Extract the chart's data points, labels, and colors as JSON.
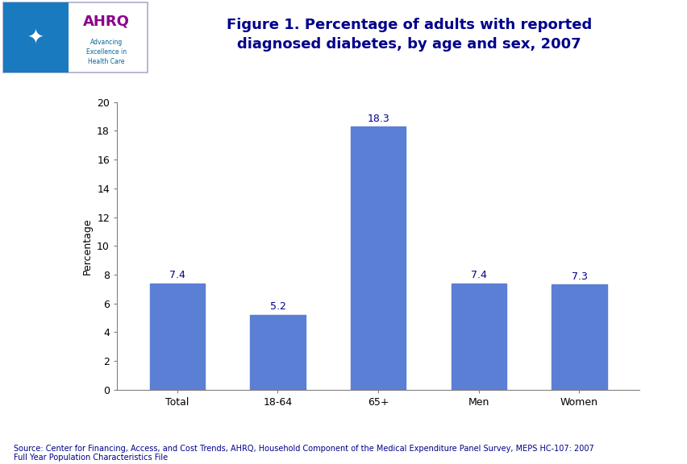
{
  "categories": [
    "Total",
    "18-64",
    "65+",
    "Men",
    "Women"
  ],
  "values": [
    7.4,
    5.2,
    18.3,
    7.4,
    7.3
  ],
  "bar_color": "#5b7fd4",
  "ylabel": "Percentage",
  "ylim": [
    0,
    20
  ],
  "yticks": [
    0,
    2,
    4,
    6,
    8,
    10,
    12,
    14,
    16,
    18,
    20
  ],
  "title_line1": "Figure 1. Percentage of adults with reported",
  "title_line2": "diagnosed diabetes, by age and sex, 2007",
  "title_color": "#00008B",
  "title_fontsize": 13,
  "bar_label_fontsize": 9,
  "bar_label_color": "#00008B",
  "tick_label_fontsize": 9,
  "ylabel_fontsize": 9,
  "ylabel_color": "#000000",
  "source_text": "Source: Center for Financing, Access, and Cost Trends, AHRQ, Household Component of the Medical Expenditure Panel Survey, MEPS HC-107: 2007\nFull Year Population Characteristics File",
  "source_fontsize": 7,
  "source_color": "#00008B",
  "chart_bg": "#ffffff",
  "fig_bg": "#ffffff",
  "separator_color": "#00008B",
  "logo_box_color": "#ffffff",
  "logo_border_color": "#aabbcc",
  "logo_left_color": "#1a7abf",
  "ahrq_text_color": "#8B008B",
  "ahrq_subtext_color": "#006699",
  "spine_color": "#808080"
}
